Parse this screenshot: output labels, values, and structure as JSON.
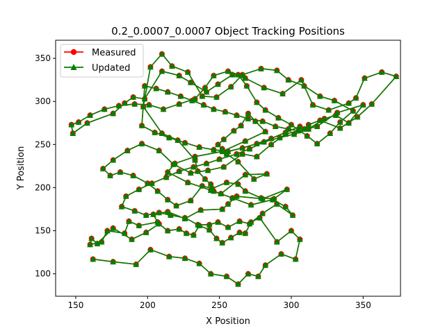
{
  "chart_data": {
    "type": "line",
    "title": "0.2_0.0007_0.0007 Object Tracking Positions",
    "xlabel": "X Position",
    "ylabel": "Y Position",
    "xlim": [
      136,
      376
    ],
    "ylim": [
      74,
      371
    ],
    "xticks": [
      150,
      200,
      250,
      300,
      350
    ],
    "yticks": [
      100,
      150,
      200,
      250,
      300,
      350
    ],
    "grid": false,
    "legend_position": "upper left",
    "colors": {
      "measured": "#ff0000",
      "updated": "#008000"
    },
    "series": [
      {
        "name": "Measured",
        "marker": "circle",
        "x": [
          162,
          176,
          192,
          202,
          215,
          226,
          236,
          244,
          255,
          263,
          270,
          277,
          282,
          293,
          303,
          306,
          300,
          290,
          278,
          272,
          268,
          264,
          258,
          252,
          248,
          243,
          236,
          232,
          227,
          222,
          214,
          208,
          199,
          189,
          176,
          165,
          161,
          160,
          168,
          172,
          184,
          187,
          194,
          207,
          204,
          214,
          226,
          237,
          252,
          256,
          262,
          280,
          297,
          288,
          279,
          268,
          263,
          255,
          245,
          238,
          230,
          220,
          214,
          207,
          200,
          190,
          181,
          174,
          169,
          176,
          186,
          196,
          208,
          218,
          230,
          242,
          253,
          266,
          276,
          286,
          296,
          309,
          312,
          320,
          334,
          346,
          356,
          373,
          363,
          351,
          345,
          340,
          326,
          315,
          307,
          294,
          281,
          268,
          259,
          249,
          241,
          230,
          222,
          210,
          198,
          190,
          184,
          176,
          158,
          148,
          147,
          152,
          160,
          170,
          180,
          191,
          201,
          211,
          222,
          233,
          240,
          246,
          256,
          263,
          269,
          276,
          282,
          291,
          300,
          311,
          318,
          327,
          334,
          343,
          330,
          320,
          309,
          298,
          290,
          279,
          266,
          258,
          248,
          238,
          228,
          217,
          210,
          202,
          197,
          210,
          221,
          233,
          235,
          240,
          244,
          246,
          251,
          268,
          283,
          274,
          263,
          255,
          252,
          249,
          253,
          260,
          265,
          270,
          275,
          282,
          268,
          252,
          233,
          219,
          214,
          228,
          244,
          259,
          272,
          287,
          296,
          301,
          290,
          280,
          271,
          264,
          256,
          249,
          243,
          235,
          226,
          216,
          208,
          199,
          191,
          182,
          185,
          194,
          203,
          213,
          222,
          232,
          241,
          250,
          262,
          271,
          281,
          292,
          302,
          312,
          323,
          331,
          340,
          350,
          332,
          318,
          305,
          298,
          289,
          280,
          270,
          262,
          254,
          246,
          239,
          231,
          223,
          214,
          206,
          198,
          196,
          205,
          215,
          226,
          236,
          246,
          256,
          266,
          276,
          286,
          296,
          306
        ],
        "y": [
          117,
          114,
          111,
          128,
          120,
          118,
          112,
          100,
          97,
          88,
          100,
          97,
          110,
          123,
          117,
          140,
          150,
          137,
          165,
          160,
          147,
          148,
          142,
          136,
          141,
          151,
          156,
          145,
          147,
          152,
          150,
          158,
          148,
          140,
          153,
          135,
          141,
          134,
          137,
          150,
          147,
          161,
          156,
          160,
          169,
          172,
          164,
          174,
          175,
          181,
          190,
          187,
          198,
          187,
          188,
          196,
          204,
          206,
          199,
          202,
          185,
          179,
          186,
          196,
          205,
          214,
          218,
          214,
          222,
          232,
          243,
          251,
          243,
          227,
          217,
          220,
          224,
          239,
          236,
          250,
          262,
          268,
          273,
          278,
          269,
          282,
          297,
          329,
          334,
          327,
          304,
          298,
          290,
          296,
          325,
          309,
          316,
          327,
          331,
          320,
          311,
          322,
          330,
          335,
          303,
          305,
          298,
          286,
          275,
          263,
          273,
          276,
          284,
          291,
          295,
          297,
          296,
          291,
          297,
          303,
          316,
          330,
          335,
          331,
          318,
          299,
          290,
          281,
          273,
          260,
          251,
          263,
          276,
          289,
          301,
          306,
          318,
          325,
          336,
          338,
          331,
          317,
          305,
          306,
          334,
          341,
          355,
          340,
          294,
          263,
          255,
          232,
          219,
          210,
          204,
          196,
          193,
          215,
          216,
          210,
          230,
          239,
          245,
          250,
          256,
          266,
          272,
          286,
          277,
          265,
          254,
          242,
          236,
          228,
          218,
          206,
          197,
          188,
          180,
          186,
          178,
          168,
          181,
          170,
          158,
          161,
          154,
          160,
          157,
          157,
          165,
          168,
          171,
          168,
          173,
          178,
          190,
          198,
          205,
          212,
          219,
          224,
          228,
          233,
          239,
          245,
          253,
          258,
          262,
          268,
          280,
          284,
          275,
          296,
          287,
          271,
          266,
          268,
          271,
          277,
          280,
          284,
          288,
          291,
          296,
          301,
          306,
          311,
          315,
          318,
          272,
          264,
          258,
          252,
          247,
          244,
          242,
          246,
          251,
          257,
          264,
          271
        ]
      },
      {
        "name": "Updated",
        "marker": "triangle-up",
        "x": [
          162,
          176,
          192,
          202,
          215,
          226,
          236,
          244,
          255,
          263,
          270,
          277,
          282,
          293,
          303,
          306,
          300,
          290,
          278,
          272,
          268,
          264,
          258,
          252,
          248,
          243,
          236,
          232,
          227,
          222,
          214,
          208,
          199,
          189,
          176,
          165,
          161,
          160,
          168,
          172,
          184,
          187,
          194,
          207,
          204,
          214,
          226,
          237,
          252,
          256,
          262,
          280,
          297,
          288,
          279,
          268,
          263,
          255,
          245,
          238,
          230,
          220,
          214,
          207,
          200,
          190,
          181,
          174,
          169,
          176,
          186,
          196,
          208,
          218,
          230,
          242,
          253,
          266,
          276,
          286,
          296,
          309,
          312,
          320,
          334,
          346,
          356,
          373,
          363,
          351,
          345,
          340,
          326,
          315,
          307,
          294,
          281,
          268,
          259,
          249,
          241,
          230,
          222,
          210,
          198,
          190,
          184,
          176,
          158,
          148,
          147,
          152,
          160,
          170,
          180,
          191,
          201,
          211,
          222,
          233,
          240,
          246,
          256,
          263,
          269,
          276,
          282,
          291,
          300,
          311,
          318,
          327,
          334,
          343,
          330,
          320,
          309,
          298,
          290,
          279,
          266,
          258,
          248,
          238,
          228,
          217,
          210,
          202,
          197,
          210,
          221,
          233,
          235,
          240,
          244,
          246,
          251,
          268,
          283,
          274,
          263,
          255,
          252,
          249,
          253,
          260,
          265,
          270,
          275,
          282,
          268,
          252,
          233,
          219,
          214,
          228,
          244,
          259,
          272,
          287,
          296,
          301,
          290,
          280,
          271,
          264,
          256,
          249,
          243,
          235,
          226,
          216,
          208,
          199,
          191,
          182,
          185,
          194,
          203,
          213,
          222,
          232,
          241,
          250,
          262,
          271,
          281,
          292,
          302,
          312,
          323,
          331,
          340,
          350,
          332,
          318,
          305,
          298,
          289,
          280,
          270,
          262,
          254,
          246,
          239,
          231,
          223,
          214,
          206,
          198,
          196,
          205,
          215,
          226,
          236,
          246,
          256,
          266,
          276,
          286,
          296,
          306
        ],
        "y": [
          117,
          114,
          111,
          128,
          120,
          118,
          112,
          100,
          97,
          88,
          100,
          97,
          110,
          123,
          117,
          140,
          150,
          137,
          165,
          160,
          147,
          148,
          142,
          136,
          141,
          151,
          156,
          145,
          147,
          152,
          150,
          158,
          148,
          140,
          153,
          135,
          141,
          134,
          137,
          150,
          147,
          161,
          156,
          160,
          169,
          172,
          164,
          174,
          175,
          181,
          190,
          187,
          198,
          187,
          188,
          196,
          204,
          206,
          199,
          202,
          185,
          179,
          186,
          196,
          205,
          214,
          218,
          214,
          222,
          232,
          243,
          251,
          243,
          227,
          217,
          220,
          224,
          239,
          236,
          250,
          262,
          268,
          273,
          278,
          269,
          282,
          297,
          329,
          334,
          327,
          304,
          298,
          290,
          296,
          325,
          309,
          316,
          327,
          331,
          320,
          311,
          322,
          330,
          335,
          303,
          305,
          298,
          286,
          275,
          263,
          273,
          276,
          284,
          291,
          295,
          297,
          296,
          291,
          297,
          303,
          316,
          330,
          335,
          331,
          318,
          299,
          290,
          281,
          273,
          260,
          251,
          263,
          276,
          289,
          301,
          306,
          318,
          325,
          336,
          338,
          331,
          317,
          305,
          306,
          334,
          341,
          355,
          340,
          294,
          263,
          255,
          232,
          219,
          210,
          204,
          196,
          193,
          215,
          216,
          210,
          230,
          239,
          245,
          250,
          256,
          266,
          272,
          286,
          277,
          265,
          254,
          242,
          236,
          228,
          218,
          206,
          197,
          188,
          180,
          186,
          178,
          168,
          181,
          170,
          158,
          161,
          154,
          160,
          157,
          157,
          165,
          168,
          171,
          168,
          173,
          178,
          190,
          198,
          205,
          212,
          219,
          224,
          228,
          233,
          239,
          245,
          253,
          258,
          262,
          268,
          280,
          284,
          275,
          296,
          287,
          271,
          266,
          268,
          271,
          277,
          280,
          284,
          288,
          291,
          296,
          301,
          306,
          311,
          315,
          318,
          272,
          264,
          258,
          252,
          247,
          244,
          242,
          246,
          251,
          257,
          264,
          271
        ]
      }
    ]
  }
}
